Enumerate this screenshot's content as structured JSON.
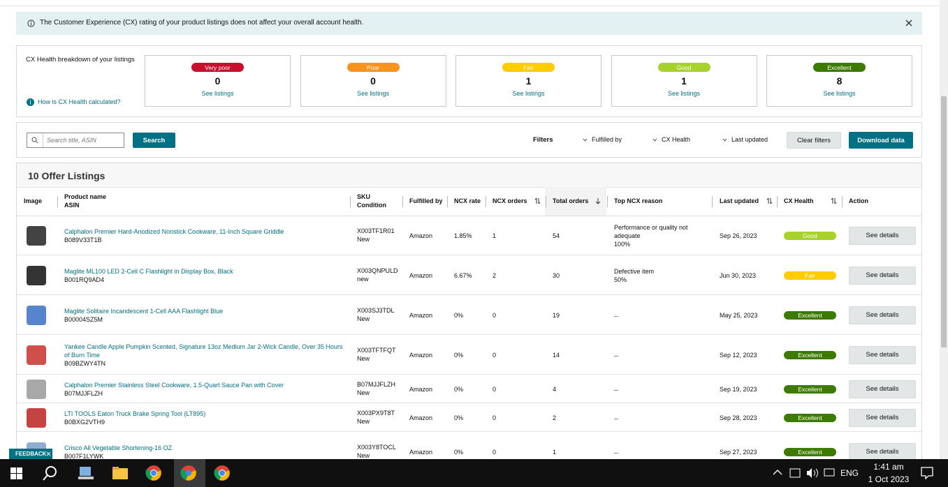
{
  "banner": {
    "text": "The Customer Experience (CX) rating of your product listings does not affect your overall account health."
  },
  "breakdown": {
    "title": "CX Health breakdown of your listings",
    "help": "How is CX Health calculated?",
    "cards": [
      {
        "label": "Very poor",
        "count": 0,
        "link": "See listings",
        "color": "#c8102e"
      },
      {
        "label": "Poor",
        "count": 0,
        "link": "See listings",
        "color": "#f7941d"
      },
      {
        "label": "Fair",
        "count": 1,
        "link": "See listings",
        "color": "#ffcc00"
      },
      {
        "label": "Good",
        "count": 1,
        "link": "See listings",
        "color": "#a6d22b"
      },
      {
        "label": "Excellent",
        "count": 8,
        "link": "See listings",
        "color": "#3d7a00"
      }
    ]
  },
  "toolbar": {
    "search_placeholder": "Search title, ASIN",
    "search_button": "Search",
    "filters_label": "Filters",
    "filters": [
      "Fulfilled by",
      "CX Health",
      "Last updated"
    ],
    "clear": "Clear filters",
    "download": "Download data"
  },
  "table": {
    "title": "10 Offer Listings",
    "columns": [
      {
        "label": "Image"
      },
      {
        "label": "Product name",
        "sub": "ASIN"
      },
      {
        "label": "SKU",
        "sub": "Condition"
      },
      {
        "label": "Fulfilled by"
      },
      {
        "label": "NCX rate"
      },
      {
        "label": "NCX orders"
      },
      {
        "label": "Total orders"
      },
      {
        "label": "Top NCX reason"
      },
      {
        "label": "Last updated"
      },
      {
        "label": "CX Health"
      },
      {
        "label": "Action"
      }
    ],
    "rows": [
      {
        "product": "Calphalon Premier Hard-Anodized Nonstick Cookware, 11-Inch Square Griddle",
        "asin": "B089V33T1B",
        "sku": "X003TF1R01",
        "condition": "New",
        "fulfilled": "Amazon",
        "ncx_rate": "1.85%",
        "ncx_orders": 1,
        "total_orders": 54,
        "reason": "Performance or quality not adequate",
        "reason_pct": "100%",
        "updated": "Sep 26, 2023",
        "health": "Good",
        "action": "See details"
      },
      {
        "product": "Maglite ML100 LED 2-Cell C Flashlight in Display Box, Black",
        "asin": "B001RQ9AD4",
        "sku": "X003QNPULD",
        "condition": "new",
        "fulfilled": "Amazon",
        "ncx_rate": "6.67%",
        "ncx_orders": 2,
        "total_orders": 30,
        "reason": "Defective item",
        "reason_pct": "50%",
        "updated": "Jun 30, 2023",
        "health": "Fair",
        "action": "See details"
      },
      {
        "product": "Maglite Solitaire Incandescent 1-Cell AAA Flashlight Blue",
        "asin": "B00004SZ5M",
        "sku": "X003SJ3TDL",
        "condition": "New",
        "fulfilled": "Amazon",
        "ncx_rate": "0%",
        "ncx_orders": 0,
        "total_orders": 19,
        "reason": "--",
        "updated": "May 25, 2023",
        "health": "Excellent",
        "action": "See details"
      },
      {
        "product": "Yankee Candle Apple Pumpkin Scented, Signature 13oz Medium Jar 2-Wick Candle, Over 35 Hours of Burn Time",
        "asin": "B09BZWY4TN",
        "sku": "X003TFTFQT",
        "condition": "New",
        "fulfilled": "Amazon",
        "ncx_rate": "0%",
        "ncx_orders": 0,
        "total_orders": 14,
        "reason": "--",
        "updated": "Sep 12, 2023",
        "health": "Excellent",
        "action": "See details"
      },
      {
        "product": "Calphalon Premier Stainless Steel Cookware, 1.5-Quart Sauce Pan with Cover",
        "asin": "B07MJJFLZH",
        "sku": "B07MJJFLZH",
        "condition": "New",
        "fulfilled": "Amazon",
        "ncx_rate": "0%",
        "ncx_orders": 0,
        "total_orders": 4,
        "reason": "--",
        "updated": "Sep 19, 2023",
        "health": "Excellent",
        "action": "See details"
      },
      {
        "product": "LTI TOOLS Eaton Truck Brake Spring Tool (LT895)",
        "asin": "B0BXG2VTH9",
        "sku": "X003PX9T8T",
        "condition": "New",
        "fulfilled": "Amazon",
        "ncx_rate": "0%",
        "ncx_orders": 0,
        "total_orders": 2,
        "reason": "--",
        "updated": "Sep 28, 2023",
        "health": "Excellent",
        "action": "See details"
      },
      {
        "product": "Crisco All Vegetable Shortening-16 OZ",
        "asin": "B007F1LYWK",
        "sku": "X003Y8TOCL",
        "condition": "New",
        "fulfilled": "Amazon",
        "ncx_rate": "0%",
        "ncx_orders": 0,
        "total_orders": 1,
        "reason": "--",
        "updated": "Sep 27, 2023",
        "health": "Excellent",
        "action": "See details"
      }
    ]
  },
  "feedback": "FEEDBACK",
  "taskbar": {
    "language": "ENG",
    "time": "1:41 am",
    "date": "1 Oct 2023"
  }
}
